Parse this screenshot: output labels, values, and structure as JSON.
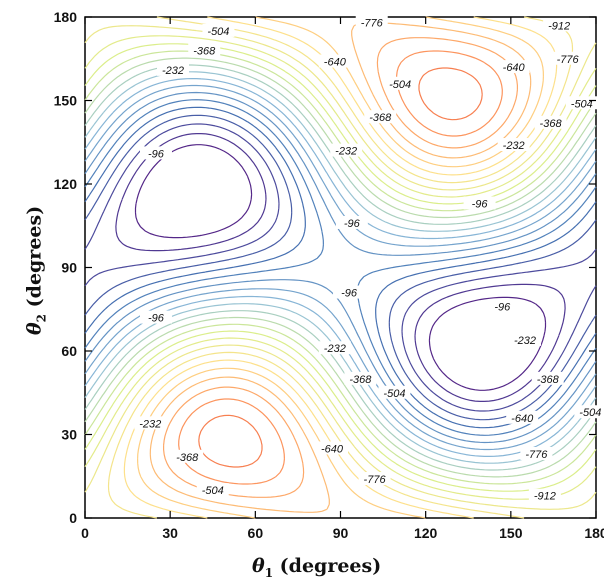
{
  "chart_data": {
    "type": "contour",
    "x_symbol": "θ",
    "x_subscript": "1",
    "x_unit": "(degrees)",
    "y_symbol": "θ",
    "y_subscript": "2",
    "y_unit": "(degrees)",
    "xlim": [
      0,
      180
    ],
    "ylim": [
      0,
      180
    ],
    "xticks": [
      0,
      30,
      60,
      90,
      120,
      150,
      180
    ],
    "yticks": [
      0,
      30,
      60,
      90,
      120,
      150,
      180
    ],
    "contour_levels": [
      -912,
      -776,
      -640,
      -504,
      -368,
      -232,
      -96
    ],
    "colormap": [
      "#d7301f",
      "#fc8d59",
      "#fee08b",
      "#d9ef8b",
      "#91bfdb",
      "#4575b4",
      "#542788"
    ],
    "labels": [
      {
        "text": "-504",
        "x": 47,
        "y": 175
      },
      {
        "text": "-776",
        "x": 101,
        "y": 178
      },
      {
        "text": "-912",
        "x": 167,
        "y": 177
      },
      {
        "text": "-368",
        "x": 42,
        "y": 168
      },
      {
        "text": "-232",
        "x": 31,
        "y": 161
      },
      {
        "text": "-640",
        "x": 88,
        "y": 164
      },
      {
        "text": "-640",
        "x": 151,
        "y": 162
      },
      {
        "text": "-776",
        "x": 170,
        "y": 165
      },
      {
        "text": "-504",
        "x": 111,
        "y": 156
      },
      {
        "text": "-504",
        "x": 175,
        "y": 149
      },
      {
        "text": "-368",
        "x": 104,
        "y": 144
      },
      {
        "text": "-368",
        "x": 164,
        "y": 142
      },
      {
        "text": "-232",
        "x": 92,
        "y": 132
      },
      {
        "text": "-232",
        "x": 151,
        "y": 134
      },
      {
        "text": "-96",
        "x": 25,
        "y": 131
      },
      {
        "text": "-96",
        "x": 139,
        "y": 113
      },
      {
        "text": "-96",
        "x": 94,
        "y": 106
      },
      {
        "text": "-96",
        "x": 93,
        "y": 81
      },
      {
        "text": "-96",
        "x": 25,
        "y": 72
      },
      {
        "text": "-96",
        "x": 147,
        "y": 76
      },
      {
        "text": "-232",
        "x": 88,
        "y": 61
      },
      {
        "text": "-232",
        "x": 155,
        "y": 64
      },
      {
        "text": "-368",
        "x": 97,
        "y": 50
      },
      {
        "text": "-368",
        "x": 163,
        "y": 50
      },
      {
        "text": "-504",
        "x": 109,
        "y": 45
      },
      {
        "text": "-504",
        "x": 178,
        "y": 38
      },
      {
        "text": "-640",
        "x": 154,
        "y": 36
      },
      {
        "text": "-232",
        "x": 23,
        "y": 34
      },
      {
        "text": "-368",
        "x": 36,
        "y": 22
      },
      {
        "text": "-640",
        "x": 87,
        "y": 25
      },
      {
        "text": "-776",
        "x": 159,
        "y": 23
      },
      {
        "text": "-776",
        "x": 102,
        "y": 14
      },
      {
        "text": "-504",
        "x": 45,
        "y": 10
      },
      {
        "text": "-912",
        "x": 162,
        "y": 8
      }
    ]
  }
}
